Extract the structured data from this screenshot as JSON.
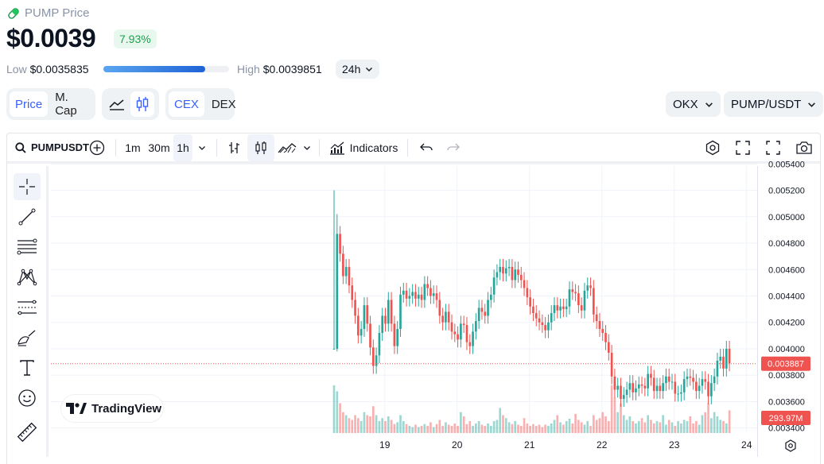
{
  "header": {
    "title": "PUMP Price",
    "price": "$0.0039",
    "change": "7.93%",
    "low_label": "Low",
    "low_value": "$0.0035835",
    "high_label": "High",
    "high_value": "$0.0039851",
    "range_position_pct": 81,
    "period": "24h"
  },
  "switches": {
    "metric": [
      "Price",
      "M. Cap"
    ],
    "metric_selected": "Price",
    "chart_types": [
      "line-chart-icon",
      "candlestick-icon"
    ],
    "chart_type_selected": "candlestick-icon",
    "venue": [
      "CEX",
      "DEX"
    ],
    "venue_selected": "CEX",
    "exchange": "OKX",
    "pair": "PUMP/USDT"
  },
  "toolbar": {
    "symbol": "PUMPUSDT",
    "intervals": [
      "1m",
      "30m",
      "1h"
    ],
    "interval_selected": "1h",
    "indicators_label": "Indicators"
  },
  "left_tools": [
    "crosshair-icon",
    "trendline-icon",
    "fib-levels-icon",
    "pattern-icon",
    "forecast-icon",
    "brush-icon",
    "text-icon",
    "emoji-icon",
    "ruler-icon"
  ],
  "watermark": "TradingView",
  "colors": {
    "up": "#26a69a",
    "down": "#ef5350",
    "accent": "#3861fb",
    "positive": "#16a34a"
  },
  "chart_data": {
    "type": "candlestick",
    "x_ticks": [
      "19",
      "20",
      "21",
      "22",
      "23",
      "24"
    ],
    "y_ticks": [
      "0.003400",
      "0.003600",
      "0.003800",
      "0.004000",
      "0.004200",
      "0.004400",
      "0.004600",
      "0.004800",
      "0.005000",
      "0.005200",
      "0.005400"
    ],
    "ylim": [
      0.00338,
      0.00542
    ],
    "last_price_label": "0.003887",
    "last_price": 0.003887,
    "volume_label": "293.97M",
    "x_start": 18.3,
    "x_step_days": 0.0417,
    "close": [
      0.004,
      0.00487,
      0.00472,
      0.00455,
      0.00462,
      0.00448,
      0.00437,
      0.00425,
      0.0041,
      0.00415,
      0.00433,
      0.00419,
      0.00401,
      0.00387,
      0.00395,
      0.00412,
      0.00425,
      0.00419,
      0.00437,
      0.00419,
      0.00402,
      0.00415,
      0.00441,
      0.00444,
      0.00438,
      0.0044,
      0.00443,
      0.00438,
      0.00441,
      0.00437,
      0.00449,
      0.00446,
      0.0044,
      0.00442,
      0.00437,
      0.00425,
      0.0042,
      0.00428,
      0.0042,
      0.00413,
      0.00411,
      0.00407,
      0.00419,
      0.00418,
      0.00405,
      0.00402,
      0.00413,
      0.00421,
      0.00431,
      0.00428,
      0.00425,
      0.00437,
      0.00441,
      0.00454,
      0.00458,
      0.00462,
      0.00457,
      0.00461,
      0.00462,
      0.00452,
      0.0046,
      0.00456,
      0.00452,
      0.00446,
      0.00439,
      0.00432,
      0.00427,
      0.00423,
      0.0042,
      0.00418,
      0.00414,
      0.0042,
      0.00427,
      0.00433,
      0.00429,
      0.00432,
      0.0043,
      0.00432,
      0.00445,
      0.00443,
      0.00442,
      0.00433,
      0.00429,
      0.00444,
      0.00448,
      0.00446,
      0.00426,
      0.00421,
      0.00415,
      0.00412,
      0.00405,
      0.00397,
      0.00379,
      0.00369,
      0.00372,
      0.00362,
      0.00365,
      0.00369,
      0.00374,
      0.00367,
      0.0037,
      0.00373,
      0.00372,
      0.0037,
      0.00381,
      0.00378,
      0.00368,
      0.00372,
      0.00368,
      0.00374,
      0.00379,
      0.00375,
      0.00375,
      0.00366,
      0.00366,
      0.00367,
      0.00377,
      0.00379,
      0.00378,
      0.00375,
      0.00368,
      0.00372,
      0.00377,
      0.00375,
      0.00364,
      0.00374,
      0.00379,
      0.00391,
      0.00394,
      0.00385,
      0.004,
      0.00389
    ],
    "volume": [
      0.8,
      0.7,
      0.5,
      0.35,
      0.3,
      0.25,
      0.22,
      0.3,
      0.25,
      0.2,
      0.35,
      0.3,
      0.28,
      0.45,
      0.3,
      0.2,
      0.25,
      0.2,
      0.28,
      0.22,
      0.15,
      0.18,
      0.3,
      0.2,
      0.15,
      0.12,
      0.1,
      0.14,
      0.1,
      0.12,
      0.15,
      0.12,
      0.18,
      0.1,
      0.15,
      0.22,
      0.12,
      0.18,
      0.14,
      0.12,
      0.16,
      0.12,
      0.35,
      0.28,
      0.15,
      0.2,
      0.12,
      0.16,
      0.2,
      0.14,
      0.12,
      0.16,
      0.12,
      0.2,
      0.22,
      0.42,
      0.3,
      0.25,
      0.18,
      0.15,
      0.2,
      0.14,
      0.12,
      0.25,
      0.16,
      0.12,
      0.15,
      0.12,
      0.14,
      0.1,
      0.14,
      0.12,
      0.16,
      0.22,
      0.3,
      0.18,
      0.14,
      0.2,
      0.24,
      0.16,
      0.32,
      0.22,
      0.18,
      0.14,
      0.2,
      0.12,
      0.3,
      0.22,
      0.25,
      0.35,
      0.28,
      0.2,
      0.8,
      0.6,
      0.35,
      0.5,
      0.3,
      0.22,
      0.28,
      0.2,
      0.16,
      0.2,
      0.25,
      0.18,
      0.3,
      0.22,
      0.16,
      0.2,
      0.18,
      0.3,
      0.14,
      0.22,
      0.18,
      0.12,
      0.2,
      0.16,
      0.22,
      0.2,
      0.28,
      0.16,
      0.2,
      0.14,
      0.3,
      0.35,
      0.5,
      0.25,
      0.35,
      0.28,
      0.22,
      0.2,
      0.16,
      0.38
    ]
  }
}
